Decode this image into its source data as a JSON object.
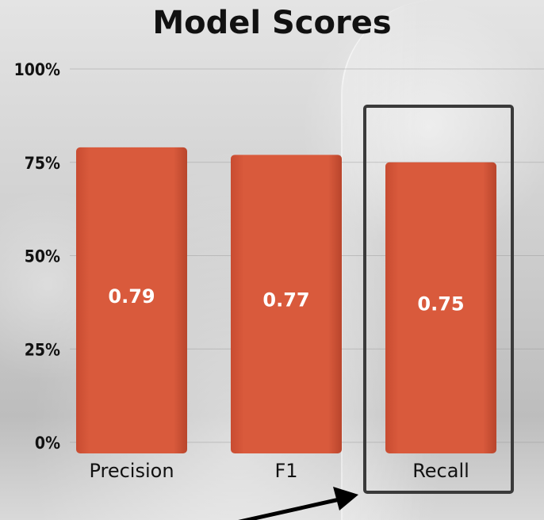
{
  "chart_data": {
    "type": "bar",
    "title": "Model Scores",
    "categories": [
      "Precision",
      "F1",
      "Recall"
    ],
    "values": [
      0.79,
      0.77,
      0.75
    ],
    "value_labels": [
      "0.79",
      "0.77",
      "0.75"
    ],
    "ylim": [
      0,
      1
    ],
    "yticks": [
      "0%",
      "25%",
      "50%",
      "75%",
      "100%"
    ],
    "grid": true,
    "legend": "none",
    "highlighted_category": "Recall"
  },
  "colors": {
    "bar": "#d95a3c",
    "highlight_box": "#3a3a3a",
    "arrow": "#000000"
  }
}
